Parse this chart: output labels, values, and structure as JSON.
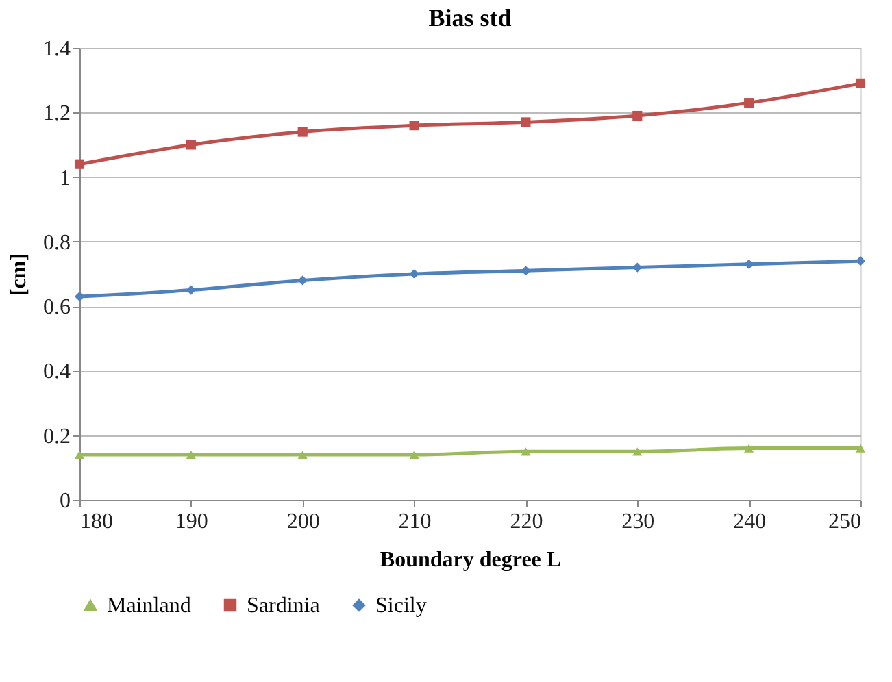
{
  "chart_data": {
    "type": "line",
    "title": "Bias std",
    "xlabel": "Boundary degree L",
    "ylabel": "[cm]",
    "x": [
      180,
      190,
      200,
      210,
      220,
      230,
      240,
      250
    ],
    "series": [
      {
        "name": "Mainland",
        "color": "#9bbb59",
        "marker": "triangle",
        "values": [
          0.14,
          0.14,
          0.14,
          0.14,
          0.15,
          0.15,
          0.16,
          0.16
        ]
      },
      {
        "name": "Sardinia",
        "color": "#c0504d",
        "marker": "square",
        "values": [
          1.04,
          1.1,
          1.14,
          1.16,
          1.17,
          1.19,
          1.23,
          1.29
        ]
      },
      {
        "name": "Sicily",
        "color": "#4f81bd",
        "marker": "diamond",
        "values": [
          0.63,
          0.65,
          0.68,
          0.7,
          0.71,
          0.72,
          0.73,
          0.74
        ]
      }
    ],
    "xlim": [
      180,
      250
    ],
    "xticks": [
      180,
      190,
      200,
      210,
      220,
      230,
      240,
      250
    ],
    "ylim": [
      0,
      1.4
    ],
    "yticks": [
      0,
      0.2,
      0.4,
      0.6,
      0.8,
      1,
      1.2,
      1.4
    ],
    "grid": "y",
    "legend": "bottom",
    "line_style": "solid"
  }
}
